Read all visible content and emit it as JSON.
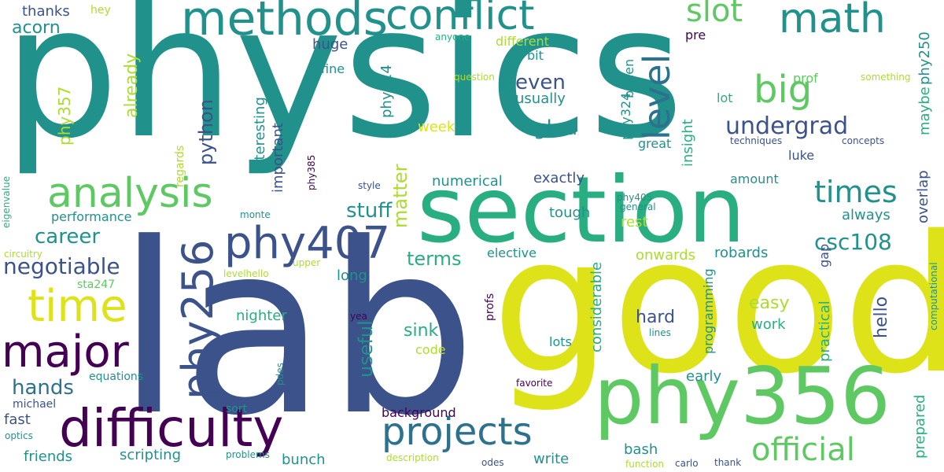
{
  "palette": {
    "dark_purple": "#440154",
    "indigo": "#3b528b",
    "blue": "#2c728e",
    "teal": "#21918c",
    "green": "#28ae80",
    "light_green": "#5ec962",
    "lime": "#addc30",
    "yellow": "#dde318"
  },
  "words": [
    "physics",
    "lab",
    "good",
    "section",
    "phy356",
    "difficulty",
    "methods",
    "conflict",
    "analysis",
    "phy407",
    "major",
    "time",
    "phy256",
    "projects",
    "math",
    "big",
    "level",
    "slot",
    "official",
    "times",
    "undergrad",
    "csc108",
    "negotiable",
    "career",
    "stuff",
    "hands",
    "even",
    "glad",
    "python",
    "already",
    "acorn",
    "thanks",
    "hey",
    "huge",
    "fine",
    "phy224",
    "phy357",
    "interesting",
    "important",
    "usually",
    "week",
    "numerical",
    "exactly",
    "matter",
    "terms",
    "long",
    "nighter",
    "useful",
    "sink",
    "code",
    "tough",
    "elective",
    "onwards",
    "robards",
    "rest",
    "easy",
    "hard",
    "work",
    "practical",
    "hello",
    "gap",
    "overlap",
    "maybe",
    "phy250",
    "prof",
    "lot",
    "luke",
    "concepts",
    "techniques",
    "great",
    "bahen",
    "phy324",
    "bit",
    "different",
    "question",
    "anyone",
    "pre",
    "insight",
    "amount",
    "general",
    "phy405",
    "performance",
    "monte",
    "regards",
    "phy385",
    "style",
    "eigenvalue",
    "circuitry",
    "levelhello",
    "upper",
    "sta247",
    "yea",
    "equations",
    "pdes",
    "michael",
    "fast",
    "optics",
    "friends",
    "scripting",
    "problems",
    "sort",
    "bunch",
    "description",
    "odes",
    "write",
    "bash",
    "function",
    "carlo",
    "thank",
    "prepared",
    "computational",
    "something",
    "programming",
    "considerable",
    "lines",
    "favorite",
    "early",
    "lots",
    "profs",
    "background",
    "always"
  ]
}
